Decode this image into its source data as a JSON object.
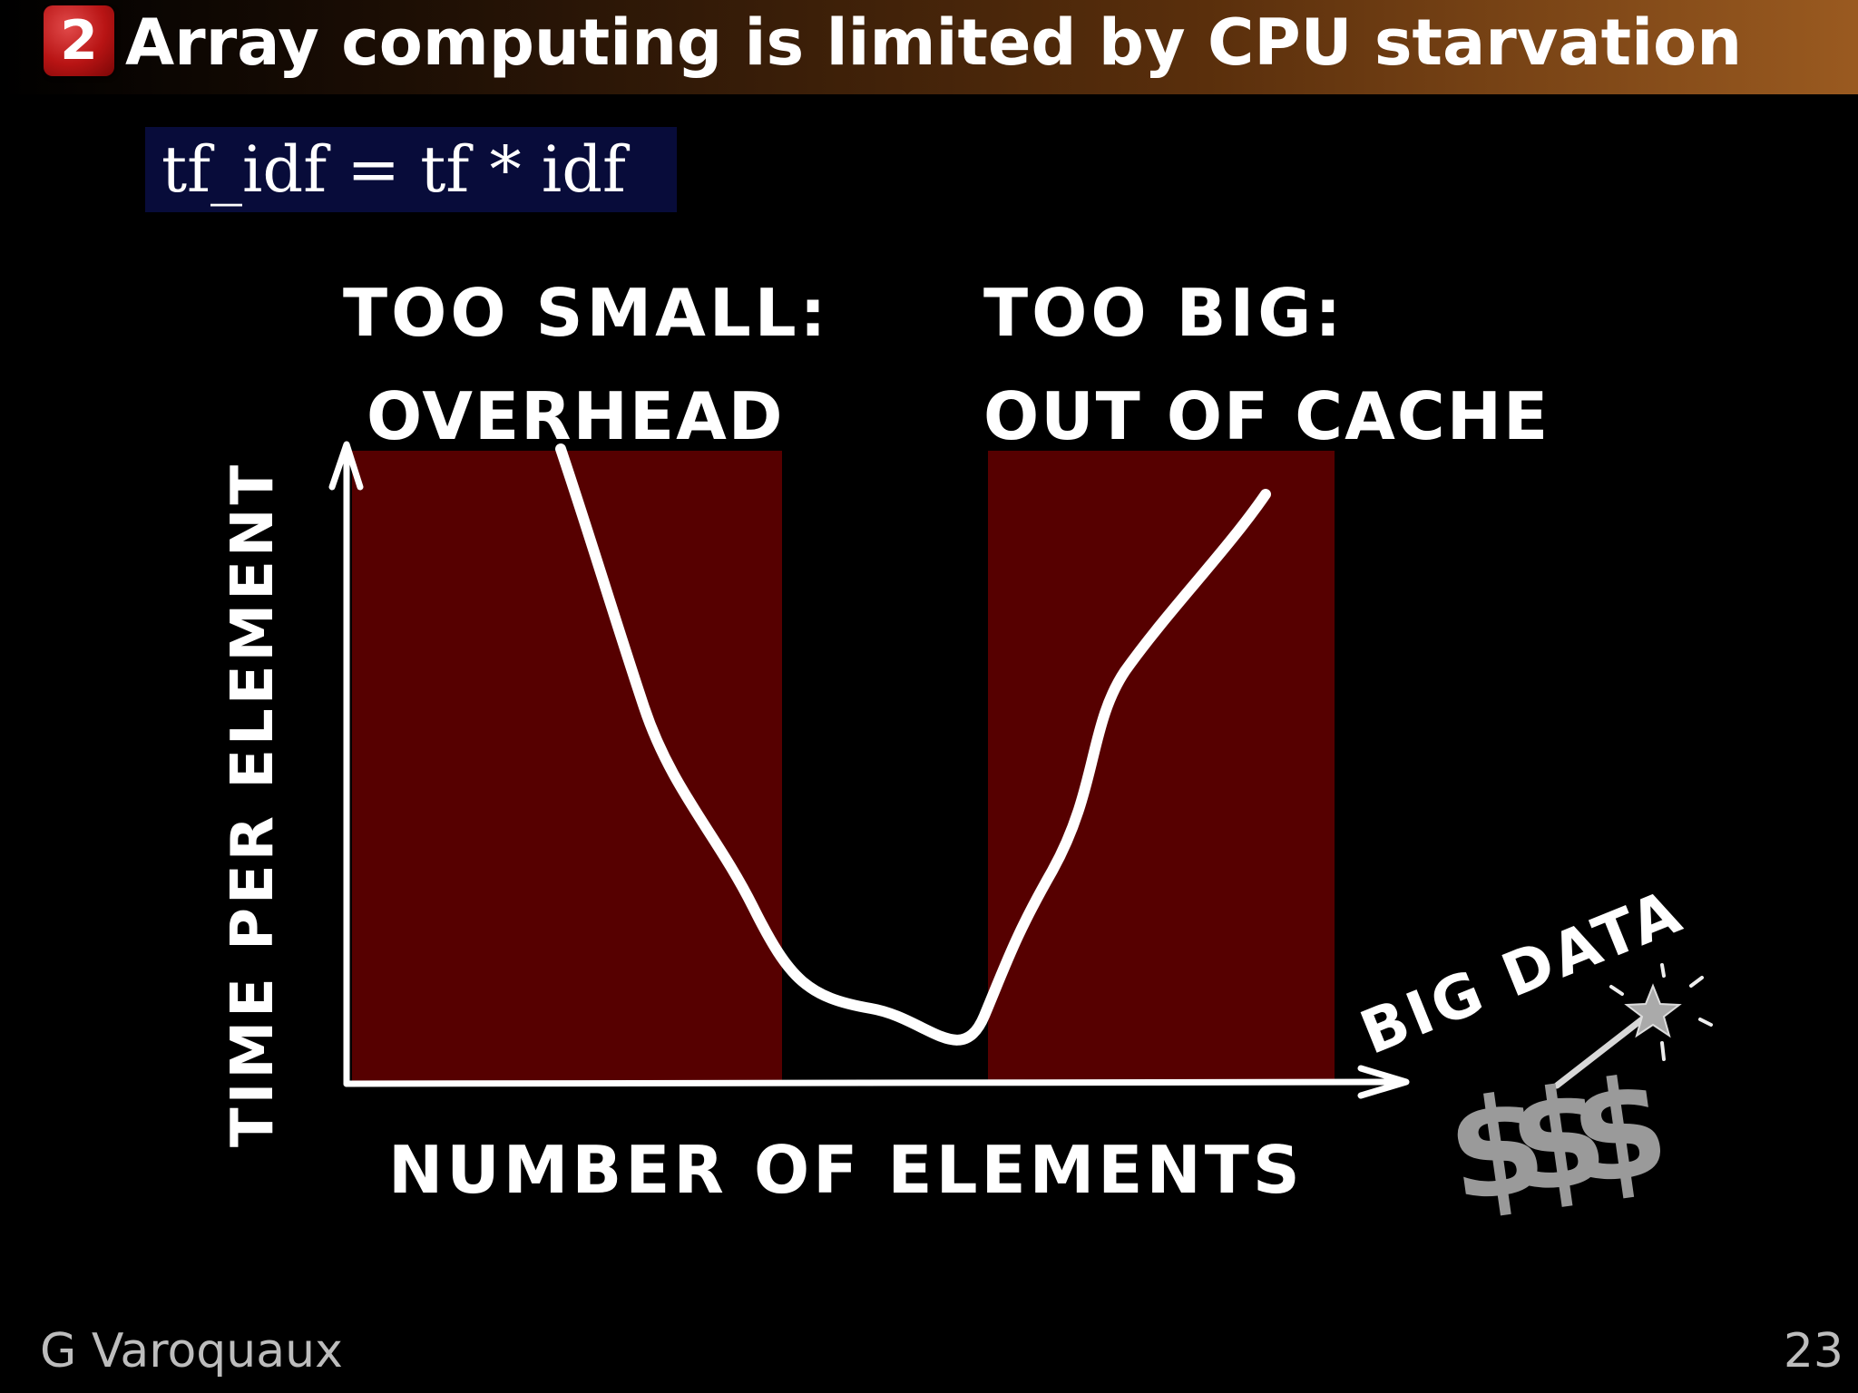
{
  "header": {
    "section_number": "2",
    "title": "Array computing is limited by CPU starvation"
  },
  "code": {
    "text": "tf_idf = tf * idf"
  },
  "diagram": {
    "annotations": {
      "too_small_line1": "TOO SMALL:",
      "too_small_line2": "OVERHEAD",
      "too_big_line1": "TOO BIG:",
      "too_big_line2": "OUT OF CACHE",
      "big_data": "BIG DATA",
      "money": "$$$"
    },
    "axes": {
      "y_label": "TIME PER ELEMENT",
      "x_label": "NUMBER OF ELEMENTS"
    }
  },
  "footer": {
    "author": "G Varoquaux",
    "page_number": "23"
  },
  "colors": {
    "region_fill": "#560000",
    "title_gradient_end": "#9a5a20",
    "badge": "#b81414",
    "code_bg": "#080c3a"
  }
}
